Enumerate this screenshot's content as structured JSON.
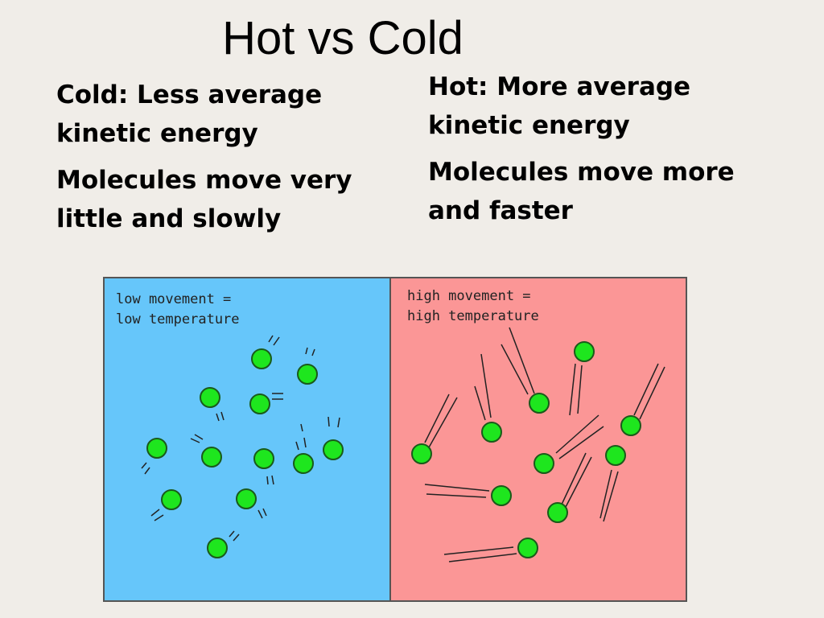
{
  "slide": {
    "title": "Hot vs Cold"
  },
  "cold": {
    "heading": "Cold: Less average kinetic energy",
    "description": "Molecules move very little and slowly"
  },
  "hot": {
    "heading": "Hot: More average kinetic energy",
    "description": "Molecules move more and  faster"
  },
  "diagram": {
    "cold_panel": {
      "label_line1": "low movement =",
      "label_line2": "low temperature",
      "color": "#66c6fa"
    },
    "hot_panel": {
      "label_line1": "high movement =",
      "label_line2": "high temperature",
      "color": "#fb9696"
    },
    "molecule_color": "#1ee61e"
  }
}
